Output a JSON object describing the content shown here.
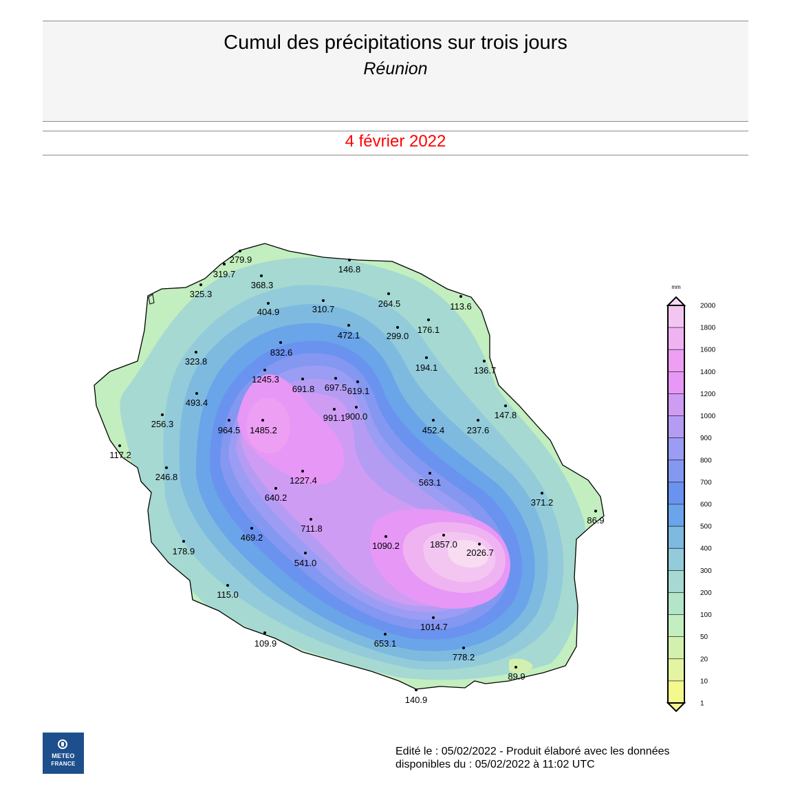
{
  "header": {
    "title": "Cumul des précipitations sur trois jours",
    "subtitle": "Réunion",
    "date": "4 février 2022"
  },
  "legend": {
    "unit": "mm",
    "levels": [
      "1",
      "10",
      "20",
      "50",
      "100",
      "200",
      "300",
      "400",
      "500",
      "600",
      "700",
      "800",
      "900",
      "1000",
      "1200",
      "1400",
      "1600",
      "1800",
      "2000"
    ],
    "colors": [
      "#f4f98e",
      "#e5f4a2",
      "#d4f0ae",
      "#c3eec0",
      "#b3e5c9",
      "#a5d9d1",
      "#93cbda",
      "#7ebadf",
      "#6aa4e9",
      "#6a92ef",
      "#8497f1",
      "#9a9df3",
      "#b49cf3",
      "#cf9cf4",
      "#e797f5",
      "#ec9ff3",
      "#f0b3f2",
      "#f3c6f2",
      "#f7dcf2"
    ]
  },
  "stations": [
    {
      "label": "279.9",
      "value": 279.9
    },
    {
      "label": "319.7",
      "value": 319.7
    },
    {
      "label": "325.3",
      "value": 325.3
    },
    {
      "label": "368.3",
      "value": 368.3
    },
    {
      "label": "146.8",
      "value": 146.8
    },
    {
      "label": "310.7",
      "value": 310.7
    },
    {
      "label": "264.5",
      "value": 264.5
    },
    {
      "label": "113.6",
      "value": 113.6
    },
    {
      "label": "404.9",
      "value": 404.9
    },
    {
      "label": "472.1",
      "value": 472.1
    },
    {
      "label": "299.0",
      "value": 299.0
    },
    {
      "label": "176.1",
      "value": 176.1
    },
    {
      "label": "832.6",
      "value": 832.6
    },
    {
      "label": "323.8",
      "value": 323.8
    },
    {
      "label": "194.1",
      "value": 194.1
    },
    {
      "label": "136.7",
      "value": 136.7
    },
    {
      "label": "1245.3",
      "value": 1245.3
    },
    {
      "label": "691.8",
      "value": 691.8
    },
    {
      "label": "697.5",
      "value": 697.5
    },
    {
      "label": "619.1",
      "value": 619.1
    },
    {
      "label": "493.4",
      "value": 493.4
    },
    {
      "label": "991.1",
      "value": 991.1
    },
    {
      "label": "900.0",
      "value": 900.0
    },
    {
      "label": "147.8",
      "value": 147.8
    },
    {
      "label": "256.3",
      "value": 256.3
    },
    {
      "label": "964.5",
      "value": 964.5
    },
    {
      "label": "1485.2",
      "value": 1485.2
    },
    {
      "label": "452.4",
      "value": 452.4
    },
    {
      "label": "237.6",
      "value": 237.6
    },
    {
      "label": "117.2",
      "value": 117.2
    },
    {
      "label": "246.8",
      "value": 246.8
    },
    {
      "label": "1227.4",
      "value": 1227.4
    },
    {
      "label": "563.1",
      "value": 563.1
    },
    {
      "label": "640.2",
      "value": 640.2
    },
    {
      "label": "371.2",
      "value": 371.2
    },
    {
      "label": "86.9",
      "value": 86.9
    },
    {
      "label": "711.8",
      "value": 711.8
    },
    {
      "label": "469.2",
      "value": 469.2
    },
    {
      "label": "1090.2",
      "value": 1090.2
    },
    {
      "label": "1857.0",
      "value": 1857.0
    },
    {
      "label": "2026.7",
      "value": 2026.7
    },
    {
      "label": "178.9",
      "value": 178.9
    },
    {
      "label": "541.0",
      "value": 541.0
    },
    {
      "label": "115.0",
      "value": 115.0
    },
    {
      "label": "1014.7",
      "value": 1014.7
    },
    {
      "label": "109.9",
      "value": 109.9
    },
    {
      "label": "653.1",
      "value": 653.1
    },
    {
      "label": "778.2",
      "value": 778.2
    },
    {
      "label": "89.9",
      "value": 89.9
    },
    {
      "label": "140.9",
      "value": 140.9
    }
  ],
  "logo": {
    "line1": "METEO",
    "line2": "FRANCE"
  },
  "footer": {
    "line1": "Edité le : 05/02/2022 - Produit élaboré avec les données",
    "line2": "disponibles du : 05/02/2022 à 11:02 UTC"
  }
}
